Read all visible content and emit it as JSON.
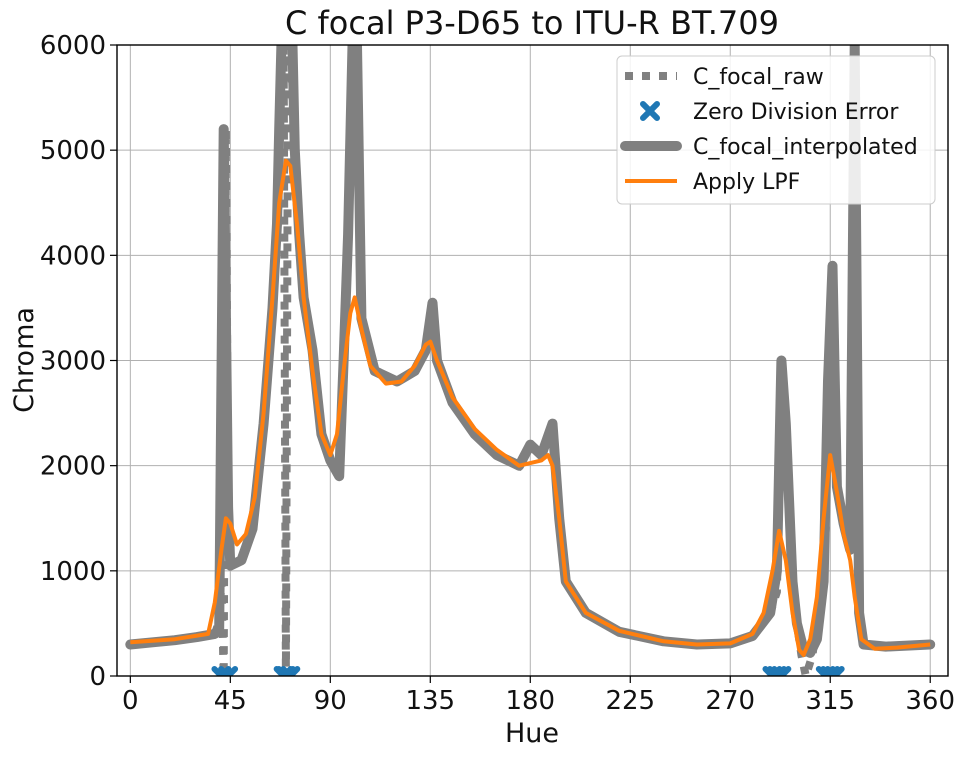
{
  "chart_data": {
    "type": "line",
    "title": "C focal P3-D65 to ITU-R BT.709",
    "xlabel": "Hue",
    "ylabel": "Chroma",
    "xlim": [
      -6,
      368
    ],
    "ylim": [
      0,
      6000
    ],
    "xticks": [
      0,
      45,
      90,
      135,
      180,
      225,
      270,
      315,
      360
    ],
    "yticks": [
      0,
      1000,
      2000,
      3000,
      4000,
      5000,
      6000
    ],
    "grid": true,
    "legend_position": "top-right",
    "series": [
      {
        "name": "C_focal_raw",
        "style": "dotted",
        "color": "#808080",
        "points": [
          [
            0,
            300
          ],
          [
            10,
            320
          ],
          [
            20,
            340
          ],
          [
            30,
            370
          ],
          [
            38,
            400
          ],
          [
            40,
            520
          ],
          [
            41,
            900
          ],
          [
            42,
            0
          ],
          [
            43,
            5200
          ],
          [
            44,
            1600
          ],
          [
            45,
            1050
          ],
          [
            50,
            1100
          ],
          [
            55,
            1400
          ],
          [
            60,
            2400
          ],
          [
            64,
            3500
          ],
          [
            66,
            4300
          ],
          [
            67,
            5200
          ],
          [
            68,
            6000
          ],
          [
            69,
            6000
          ],
          [
            70,
            0
          ],
          [
            71,
            6000
          ],
          [
            72,
            6000
          ],
          [
            74,
            5000
          ],
          [
            76,
            4200
          ],
          [
            78,
            3600
          ],
          [
            82,
            3100
          ],
          [
            86,
            2300
          ],
          [
            90,
            2050
          ],
          [
            94,
            1900
          ],
          [
            96,
            3000
          ],
          [
            98,
            4200
          ],
          [
            100,
            6000
          ],
          [
            102,
            6000
          ],
          [
            104,
            3400
          ],
          [
            110,
            2900
          ],
          [
            120,
            2800
          ],
          [
            128,
            2900
          ],
          [
            133,
            3100
          ],
          [
            136,
            3550
          ],
          [
            138,
            3000
          ],
          [
            145,
            2600
          ],
          [
            155,
            2300
          ],
          [
            165,
            2100
          ],
          [
            175,
            2000
          ],
          [
            180,
            2200
          ],
          [
            185,
            2100
          ],
          [
            190,
            2400
          ],
          [
            193,
            1500
          ],
          [
            196,
            900
          ],
          [
            205,
            600
          ],
          [
            220,
            420
          ],
          [
            240,
            330
          ],
          [
            255,
            300
          ],
          [
            270,
            310
          ],
          [
            280,
            380
          ],
          [
            288,
            600
          ],
          [
            291,
            800
          ],
          [
            293,
            3000
          ],
          [
            295,
            2400
          ],
          [
            298,
            900
          ],
          [
            300,
            500
          ],
          [
            302,
            200
          ],
          [
            304,
            0
          ],
          [
            307,
            200
          ],
          [
            310,
            700
          ],
          [
            313,
            1400
          ],
          [
            314,
            2800
          ],
          [
            316,
            3900
          ],
          [
            318,
            1800
          ],
          [
            321,
            1450
          ],
          [
            324,
            1200
          ],
          [
            326,
            6000
          ],
          [
            328,
            600
          ],
          [
            330,
            300
          ],
          [
            340,
            280
          ],
          [
            360,
            300
          ]
        ]
      },
      {
        "name": "Zero Division Error",
        "style": "marker",
        "color": "#1f77b4",
        "points": [
          [
            41,
            0
          ],
          [
            44,
            0
          ],
          [
            69,
            0
          ],
          [
            70,
            0
          ],
          [
            72,
            0
          ],
          [
            289,
            0
          ],
          [
            291,
            0
          ],
          [
            293,
            0
          ],
          [
            313,
            0
          ],
          [
            315,
            0
          ],
          [
            317,
            0
          ]
        ]
      },
      {
        "name": "C_focal_interpolated",
        "style": "thick",
        "color": "#808080",
        "points": [
          [
            0,
            300
          ],
          [
            10,
            320
          ],
          [
            20,
            340
          ],
          [
            30,
            370
          ],
          [
            38,
            400
          ],
          [
            40,
            450
          ],
          [
            42,
            5200
          ],
          [
            44,
            1600
          ],
          [
            45,
            1050
          ],
          [
            50,
            1100
          ],
          [
            55,
            1400
          ],
          [
            60,
            2400
          ],
          [
            64,
            3500
          ],
          [
            66,
            4300
          ],
          [
            67,
            5200
          ],
          [
            68,
            6000
          ],
          [
            73,
            6000
          ],
          [
            74,
            5000
          ],
          [
            76,
            4200
          ],
          [
            78,
            3600
          ],
          [
            82,
            3100
          ],
          [
            86,
            2300
          ],
          [
            90,
            2050
          ],
          [
            94,
            1900
          ],
          [
            96,
            3000
          ],
          [
            98,
            4200
          ],
          [
            100,
            6000
          ],
          [
            102,
            6000
          ],
          [
            104,
            3400
          ],
          [
            110,
            2900
          ],
          [
            120,
            2800
          ],
          [
            128,
            2900
          ],
          [
            133,
            3100
          ],
          [
            136,
            3550
          ],
          [
            138,
            3000
          ],
          [
            145,
            2600
          ],
          [
            155,
            2300
          ],
          [
            165,
            2100
          ],
          [
            175,
            2000
          ],
          [
            180,
            2200
          ],
          [
            185,
            2100
          ],
          [
            190,
            2400
          ],
          [
            193,
            1500
          ],
          [
            196,
            900
          ],
          [
            205,
            600
          ],
          [
            220,
            420
          ],
          [
            240,
            330
          ],
          [
            255,
            300
          ],
          [
            270,
            310
          ],
          [
            280,
            380
          ],
          [
            288,
            600
          ],
          [
            291,
            1000
          ],
          [
            293,
            3000
          ],
          [
            295,
            2400
          ],
          [
            298,
            900
          ],
          [
            300,
            500
          ],
          [
            303,
            250
          ],
          [
            306,
            220
          ],
          [
            309,
            350
          ],
          [
            312,
            900
          ],
          [
            314,
            2800
          ],
          [
            316,
            3900
          ],
          [
            318,
            1800
          ],
          [
            321,
            1450
          ],
          [
            324,
            1200
          ],
          [
            326,
            6000
          ],
          [
            328,
            600
          ],
          [
            330,
            300
          ],
          [
            340,
            280
          ],
          [
            360,
            300
          ]
        ]
      },
      {
        "name": "Apply LPF",
        "style": "line",
        "color": "#ff7f0e",
        "points": [
          [
            0,
            320
          ],
          [
            20,
            350
          ],
          [
            35,
            400
          ],
          [
            38,
            700
          ],
          [
            41,
            1200
          ],
          [
            43,
            1500
          ],
          [
            45,
            1450
          ],
          [
            48,
            1250
          ],
          [
            52,
            1350
          ],
          [
            56,
            1700
          ],
          [
            60,
            2500
          ],
          [
            64,
            3600
          ],
          [
            67,
            4500
          ],
          [
            70,
            4900
          ],
          [
            72,
            4850
          ],
          [
            75,
            4300
          ],
          [
            78,
            3600
          ],
          [
            82,
            2900
          ],
          [
            86,
            2300
          ],
          [
            90,
            2100
          ],
          [
            93,
            2300
          ],
          [
            96,
            2900
          ],
          [
            99,
            3450
          ],
          [
            101,
            3600
          ],
          [
            104,
            3300
          ],
          [
            108,
            2950
          ],
          [
            115,
            2780
          ],
          [
            122,
            2800
          ],
          [
            128,
            2950
          ],
          [
            133,
            3150
          ],
          [
            135,
            3180
          ],
          [
            138,
            3000
          ],
          [
            145,
            2650
          ],
          [
            155,
            2350
          ],
          [
            165,
            2150
          ],
          [
            175,
            2000
          ],
          [
            185,
            2050
          ],
          [
            188,
            2100
          ],
          [
            190,
            2000
          ],
          [
            193,
            1500
          ],
          [
            196,
            900
          ],
          [
            205,
            600
          ],
          [
            220,
            430
          ],
          [
            240,
            330
          ],
          [
            255,
            300
          ],
          [
            270,
            310
          ],
          [
            280,
            400
          ],
          [
            285,
            600
          ],
          [
            289,
            1000
          ],
          [
            292,
            1380
          ],
          [
            295,
            1100
          ],
          [
            298,
            600
          ],
          [
            301,
            250
          ],
          [
            303,
            200
          ],
          [
            306,
            350
          ],
          [
            309,
            750
          ],
          [
            312,
            1500
          ],
          [
            315,
            2100
          ],
          [
            318,
            1750
          ],
          [
            321,
            1350
          ],
          [
            324,
            1100
          ],
          [
            326,
            750
          ],
          [
            329,
            350
          ],
          [
            335,
            260
          ],
          [
            345,
            270
          ],
          [
            360,
            300
          ]
        ]
      }
    ]
  }
}
